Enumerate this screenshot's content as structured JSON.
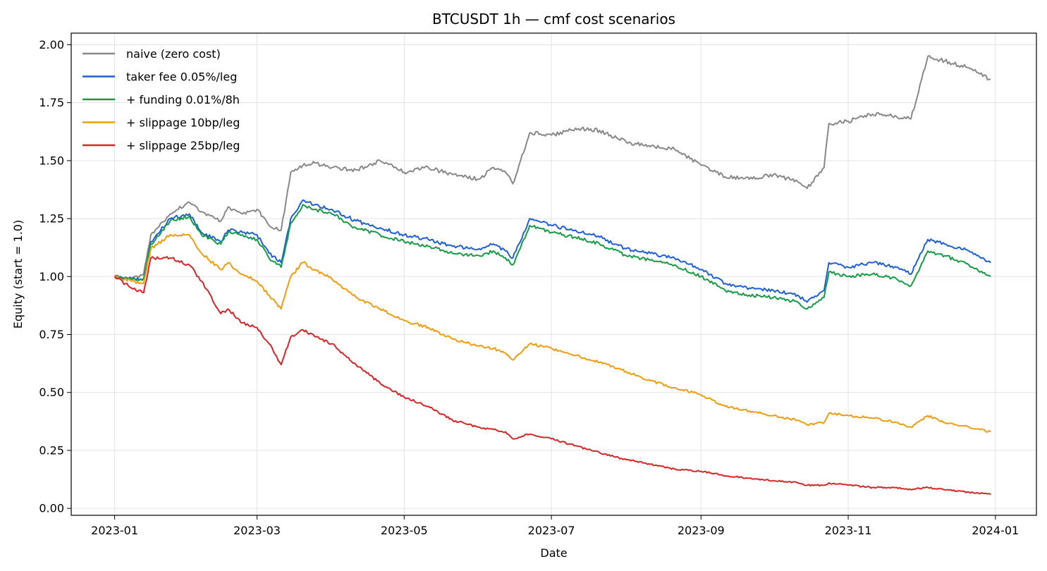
{
  "chart_data": {
    "type": "line",
    "title": "BTCUSDT 1h — cmf cost scenarios",
    "xlabel": "Date",
    "ylabel": "Equity (start = 1.0)",
    "xlim": [
      "2022-12-14",
      "2024-01-18"
    ],
    "ylim": [
      -0.03,
      2.05
    ],
    "x_ticks": [
      "2023-01-01",
      "2023-03-01",
      "2023-05-01",
      "2023-07-01",
      "2023-09-01",
      "2023-11-01",
      "2024-01-01"
    ],
    "x_tick_labels": [
      "2023-01",
      "2023-03",
      "2023-05",
      "2023-07",
      "2023-09",
      "2023-11",
      "2024-01"
    ],
    "y_ticks": [
      0.0,
      0.25,
      0.5,
      0.75,
      1.0,
      1.25,
      1.5,
      1.75,
      2.0
    ],
    "y_tick_labels": [
      "0.00",
      "0.25",
      "0.50",
      "0.75",
      "1.00",
      "1.25",
      "1.50",
      "1.75",
      "2.00"
    ],
    "grid": true,
    "legend_position": "top-left",
    "colors": {
      "naive": "#888888",
      "taker": "#1f5fd9",
      "funding": "#169c45",
      "slip10": "#f29c11",
      "slip25": "#d62728"
    },
    "series": [
      {
        "name": "naive (zero cost)",
        "color": "#888888",
        "x": [
          "2023-01-01",
          "2023-01-08",
          "2023-01-13",
          "2023-01-16",
          "2023-01-24",
          "2023-02-01",
          "2023-02-06",
          "2023-02-14",
          "2023-02-17",
          "2023-02-23",
          "2023-03-01",
          "2023-03-06",
          "2023-03-11",
          "2023-03-15",
          "2023-03-20",
          "2023-03-25",
          "2023-04-01",
          "2023-04-11",
          "2023-04-21",
          "2023-05-01",
          "2023-05-11",
          "2023-05-21",
          "2023-06-01",
          "2023-06-07",
          "2023-06-12",
          "2023-06-15",
          "2023-06-22",
          "2023-07-01",
          "2023-07-11",
          "2023-07-21",
          "2023-08-01",
          "2023-08-11",
          "2023-08-21",
          "2023-09-01",
          "2023-09-11",
          "2023-09-21",
          "2023-10-01",
          "2023-10-11",
          "2023-10-15",
          "2023-10-22",
          "2023-10-24",
          "2023-11-01",
          "2023-11-11",
          "2023-11-21",
          "2023-11-27",
          "2023-12-04",
          "2023-12-11",
          "2023-12-21",
          "2023-12-30"
        ],
        "values": [
          1.0,
          0.99,
          1.01,
          1.18,
          1.27,
          1.32,
          1.28,
          1.24,
          1.3,
          1.27,
          1.29,
          1.22,
          1.2,
          1.45,
          1.48,
          1.49,
          1.47,
          1.46,
          1.5,
          1.45,
          1.47,
          1.44,
          1.42,
          1.47,
          1.45,
          1.4,
          1.62,
          1.61,
          1.64,
          1.63,
          1.58,
          1.56,
          1.55,
          1.48,
          1.43,
          1.42,
          1.44,
          1.41,
          1.38,
          1.47,
          1.66,
          1.67,
          1.7,
          1.69,
          1.68,
          1.95,
          1.93,
          1.9,
          1.85
        ]
      },
      {
        "name": "taker fee 0.05%/leg",
        "color": "#1f5fd9",
        "x": [
          "2023-01-01",
          "2023-01-08",
          "2023-01-13",
          "2023-01-16",
          "2023-01-24",
          "2023-02-01",
          "2023-02-06",
          "2023-02-14",
          "2023-02-17",
          "2023-02-23",
          "2023-03-01",
          "2023-03-06",
          "2023-03-11",
          "2023-03-15",
          "2023-03-20",
          "2023-03-25",
          "2023-04-01",
          "2023-04-11",
          "2023-04-21",
          "2023-05-01",
          "2023-05-11",
          "2023-05-21",
          "2023-06-01",
          "2023-06-07",
          "2023-06-12",
          "2023-06-15",
          "2023-06-22",
          "2023-07-01",
          "2023-07-11",
          "2023-07-21",
          "2023-08-01",
          "2023-08-11",
          "2023-08-21",
          "2023-09-01",
          "2023-09-11",
          "2023-09-21",
          "2023-10-01",
          "2023-10-11",
          "2023-10-15",
          "2023-10-22",
          "2023-10-24",
          "2023-11-01",
          "2023-11-11",
          "2023-11-21",
          "2023-11-27",
          "2023-12-04",
          "2023-12-11",
          "2023-12-21",
          "2023-12-30"
        ],
        "values": [
          1.0,
          0.99,
          0.99,
          1.15,
          1.25,
          1.27,
          1.19,
          1.15,
          1.2,
          1.19,
          1.18,
          1.1,
          1.06,
          1.25,
          1.33,
          1.31,
          1.29,
          1.24,
          1.21,
          1.18,
          1.16,
          1.13,
          1.12,
          1.14,
          1.11,
          1.08,
          1.25,
          1.22,
          1.2,
          1.17,
          1.12,
          1.1,
          1.08,
          1.03,
          0.97,
          0.95,
          0.94,
          0.92,
          0.89,
          0.94,
          1.06,
          1.04,
          1.06,
          1.04,
          1.01,
          1.16,
          1.14,
          1.11,
          1.06
        ]
      },
      {
        "name": "+ funding 0.01%/8h",
        "color": "#169c45",
        "x": [
          "2023-01-01",
          "2023-01-08",
          "2023-01-13",
          "2023-01-16",
          "2023-01-24",
          "2023-02-01",
          "2023-02-06",
          "2023-02-14",
          "2023-02-17",
          "2023-02-23",
          "2023-03-01",
          "2023-03-06",
          "2023-03-11",
          "2023-03-15",
          "2023-03-20",
          "2023-03-25",
          "2023-04-01",
          "2023-04-11",
          "2023-04-21",
          "2023-05-01",
          "2023-05-11",
          "2023-05-21",
          "2023-06-01",
          "2023-06-07",
          "2023-06-12",
          "2023-06-15",
          "2023-06-22",
          "2023-07-01",
          "2023-07-11",
          "2023-07-21",
          "2023-08-01",
          "2023-08-11",
          "2023-08-21",
          "2023-09-01",
          "2023-09-11",
          "2023-09-21",
          "2023-10-01",
          "2023-10-11",
          "2023-10-15",
          "2023-10-22",
          "2023-10-24",
          "2023-11-01",
          "2023-11-11",
          "2023-11-21",
          "2023-11-27",
          "2023-12-04",
          "2023-12-11",
          "2023-12-21",
          "2023-12-30"
        ],
        "values": [
          1.0,
          0.99,
          0.99,
          1.14,
          1.24,
          1.26,
          1.18,
          1.14,
          1.19,
          1.18,
          1.16,
          1.08,
          1.04,
          1.23,
          1.31,
          1.29,
          1.27,
          1.21,
          1.18,
          1.15,
          1.13,
          1.1,
          1.09,
          1.11,
          1.08,
          1.05,
          1.22,
          1.19,
          1.17,
          1.14,
          1.09,
          1.07,
          1.05,
          1.0,
          0.94,
          0.92,
          0.91,
          0.89,
          0.86,
          0.91,
          1.02,
          1.0,
          1.01,
          0.99,
          0.96,
          1.11,
          1.09,
          1.05,
          1.0
        ]
      },
      {
        "name": "+ slippage 10bp/leg",
        "color": "#f29c11",
        "x": [
          "2023-01-01",
          "2023-01-08",
          "2023-01-13",
          "2023-01-16",
          "2023-01-24",
          "2023-02-01",
          "2023-02-06",
          "2023-02-14",
          "2023-02-17",
          "2023-02-23",
          "2023-03-01",
          "2023-03-06",
          "2023-03-11",
          "2023-03-15",
          "2023-03-20",
          "2023-03-25",
          "2023-04-01",
          "2023-04-11",
          "2023-04-21",
          "2023-05-01",
          "2023-05-11",
          "2023-05-21",
          "2023-06-01",
          "2023-06-07",
          "2023-06-12",
          "2023-06-15",
          "2023-06-22",
          "2023-07-01",
          "2023-07-11",
          "2023-07-21",
          "2023-08-01",
          "2023-08-11",
          "2023-08-21",
          "2023-09-01",
          "2023-09-11",
          "2023-09-21",
          "2023-10-01",
          "2023-10-11",
          "2023-10-15",
          "2023-10-22",
          "2023-10-24",
          "2023-11-01",
          "2023-11-11",
          "2023-11-21",
          "2023-11-27",
          "2023-12-04",
          "2023-12-11",
          "2023-12-21",
          "2023-12-30"
        ],
        "values": [
          1.0,
          0.98,
          0.97,
          1.12,
          1.18,
          1.18,
          1.1,
          1.03,
          1.06,
          1.01,
          0.98,
          0.92,
          0.86,
          1.0,
          1.06,
          1.03,
          0.99,
          0.91,
          0.86,
          0.81,
          0.78,
          0.73,
          0.7,
          0.69,
          0.67,
          0.64,
          0.71,
          0.69,
          0.66,
          0.63,
          0.59,
          0.55,
          0.52,
          0.49,
          0.44,
          0.42,
          0.4,
          0.38,
          0.36,
          0.37,
          0.41,
          0.4,
          0.39,
          0.37,
          0.35,
          0.4,
          0.37,
          0.35,
          0.33
        ]
      },
      {
        "name": "+ slippage 25bp/leg",
        "color": "#d62728",
        "x": [
          "2023-01-01",
          "2023-01-08",
          "2023-01-13",
          "2023-01-16",
          "2023-01-24",
          "2023-02-01",
          "2023-02-06",
          "2023-02-14",
          "2023-02-17",
          "2023-02-23",
          "2023-03-01",
          "2023-03-06",
          "2023-03-11",
          "2023-03-15",
          "2023-03-20",
          "2023-03-25",
          "2023-04-01",
          "2023-04-11",
          "2023-04-21",
          "2023-05-01",
          "2023-05-11",
          "2023-05-21",
          "2023-06-01",
          "2023-06-07",
          "2023-06-12",
          "2023-06-15",
          "2023-06-22",
          "2023-07-01",
          "2023-07-11",
          "2023-07-21",
          "2023-08-01",
          "2023-08-11",
          "2023-08-21",
          "2023-09-01",
          "2023-09-11",
          "2023-09-21",
          "2023-10-01",
          "2023-10-11",
          "2023-10-15",
          "2023-10-22",
          "2023-10-24",
          "2023-11-01",
          "2023-11-11",
          "2023-11-21",
          "2023-11-27",
          "2023-12-04",
          "2023-12-11",
          "2023-12-21",
          "2023-12-30"
        ],
        "values": [
          1.0,
          0.95,
          0.93,
          1.08,
          1.08,
          1.05,
          0.98,
          0.84,
          0.86,
          0.8,
          0.78,
          0.71,
          0.62,
          0.74,
          0.77,
          0.74,
          0.71,
          0.62,
          0.54,
          0.48,
          0.44,
          0.38,
          0.35,
          0.34,
          0.33,
          0.3,
          0.32,
          0.3,
          0.27,
          0.24,
          0.21,
          0.19,
          0.17,
          0.16,
          0.14,
          0.13,
          0.12,
          0.11,
          0.1,
          0.1,
          0.11,
          0.1,
          0.09,
          0.09,
          0.08,
          0.09,
          0.08,
          0.07,
          0.06
        ]
      }
    ]
  }
}
